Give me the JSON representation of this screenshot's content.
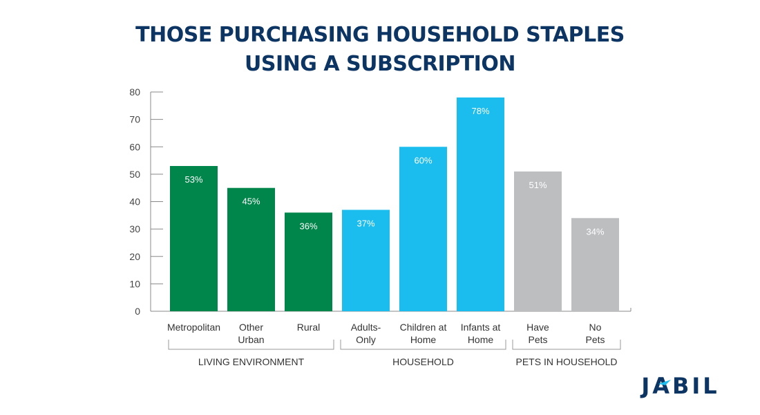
{
  "chart_data": {
    "type": "bar",
    "title": [
      "THOSE PURCHASING HOUSEHOLD STAPLES",
      "USING A SUBSCRIPTION"
    ],
    "ylim": [
      0,
      80
    ],
    "yticks": [
      0,
      10,
      20,
      30,
      40,
      50,
      60,
      70,
      80
    ],
    "grid": false,
    "categories": [
      [
        "Metropolitan"
      ],
      [
        "Other",
        "Urban"
      ],
      [
        "Rural"
      ],
      [
        "Adults-",
        "Only"
      ],
      [
        "Children at",
        "Home"
      ],
      [
        "Infants at",
        "Home"
      ],
      [
        "Have",
        "Pets"
      ],
      [
        "No",
        "Pets"
      ]
    ],
    "values": [
      53,
      45,
      36,
      37,
      60,
      78,
      51,
      34
    ],
    "data_labels": [
      "53%",
      "45%",
      "36%",
      "37%",
      "60%",
      "78%",
      "51%",
      "34%"
    ],
    "bar_colors": [
      "#00854a",
      "#00854a",
      "#00854a",
      "#1bbdee",
      "#1bbdee",
      "#1bbdee",
      "#bdbec0",
      "#bdbec0"
    ],
    "groups": [
      {
        "label": "LIVING ENVIRONMENT",
        "start": 0,
        "end": 2
      },
      {
        "label": "HOUSEHOLD",
        "start": 3,
        "end": 5
      },
      {
        "label": "PETS IN HOUSEHOLD",
        "start": 6,
        "end": 7
      }
    ]
  },
  "logo": {
    "text": "JABIL",
    "color": "#0c3563",
    "accent": "#1bbdee"
  }
}
